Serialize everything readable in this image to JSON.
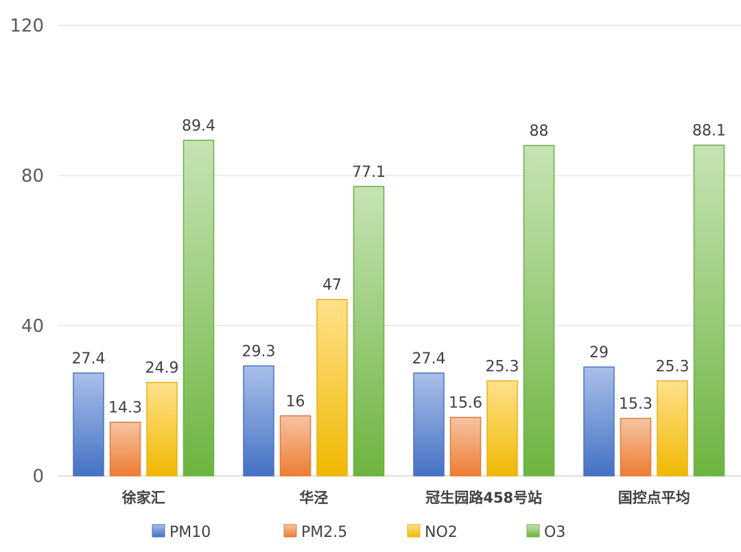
{
  "chart_data": {
    "type": "bar",
    "title": "",
    "xlabel": "",
    "ylabel": "",
    "ylim": [
      0,
      120
    ],
    "yticks": [
      "0",
      "40",
      "80",
      "120"
    ],
    "grid": true,
    "legend_position": "bottom",
    "categories": [
      "徐家汇",
      "华泾",
      "冠生园路458号站",
      "国控点平均"
    ],
    "series": [
      {
        "name": "PM10",
        "values": [
          27.4,
          29.3,
          27.4,
          29
        ],
        "labels": [
          "27.4",
          "29.3",
          "27.4",
          "29"
        ],
        "color_top": "#a9bfe9",
        "color_bottom": "#4472c4",
        "stroke": "#4a72c0"
      },
      {
        "name": "PM2.5",
        "values": [
          14.3,
          16,
          15.6,
          15.3
        ],
        "labels": [
          "14.3",
          "16",
          "15.6",
          "15.3"
        ],
        "color_top": "#f6c3a3",
        "color_bottom": "#ed7d31",
        "stroke": "#e07a3a"
      },
      {
        "name": "NO2",
        "values": [
          24.9,
          47,
          25.3,
          25.3
        ],
        "labels": [
          "24.9",
          "47",
          "25.3",
          "25.3"
        ],
        "color_top": "#ffe18c",
        "color_bottom": "#f0b800",
        "stroke": "#e3b21a"
      },
      {
        "name": "O3",
        "values": [
          89.4,
          77.1,
          88,
          88.1
        ],
        "labels": [
          "89.4",
          "77.1",
          "88",
          "88.1"
        ],
        "color_top": "#c6e3b4",
        "color_bottom": "#6db43f",
        "stroke": "#6aae45"
      }
    ]
  }
}
